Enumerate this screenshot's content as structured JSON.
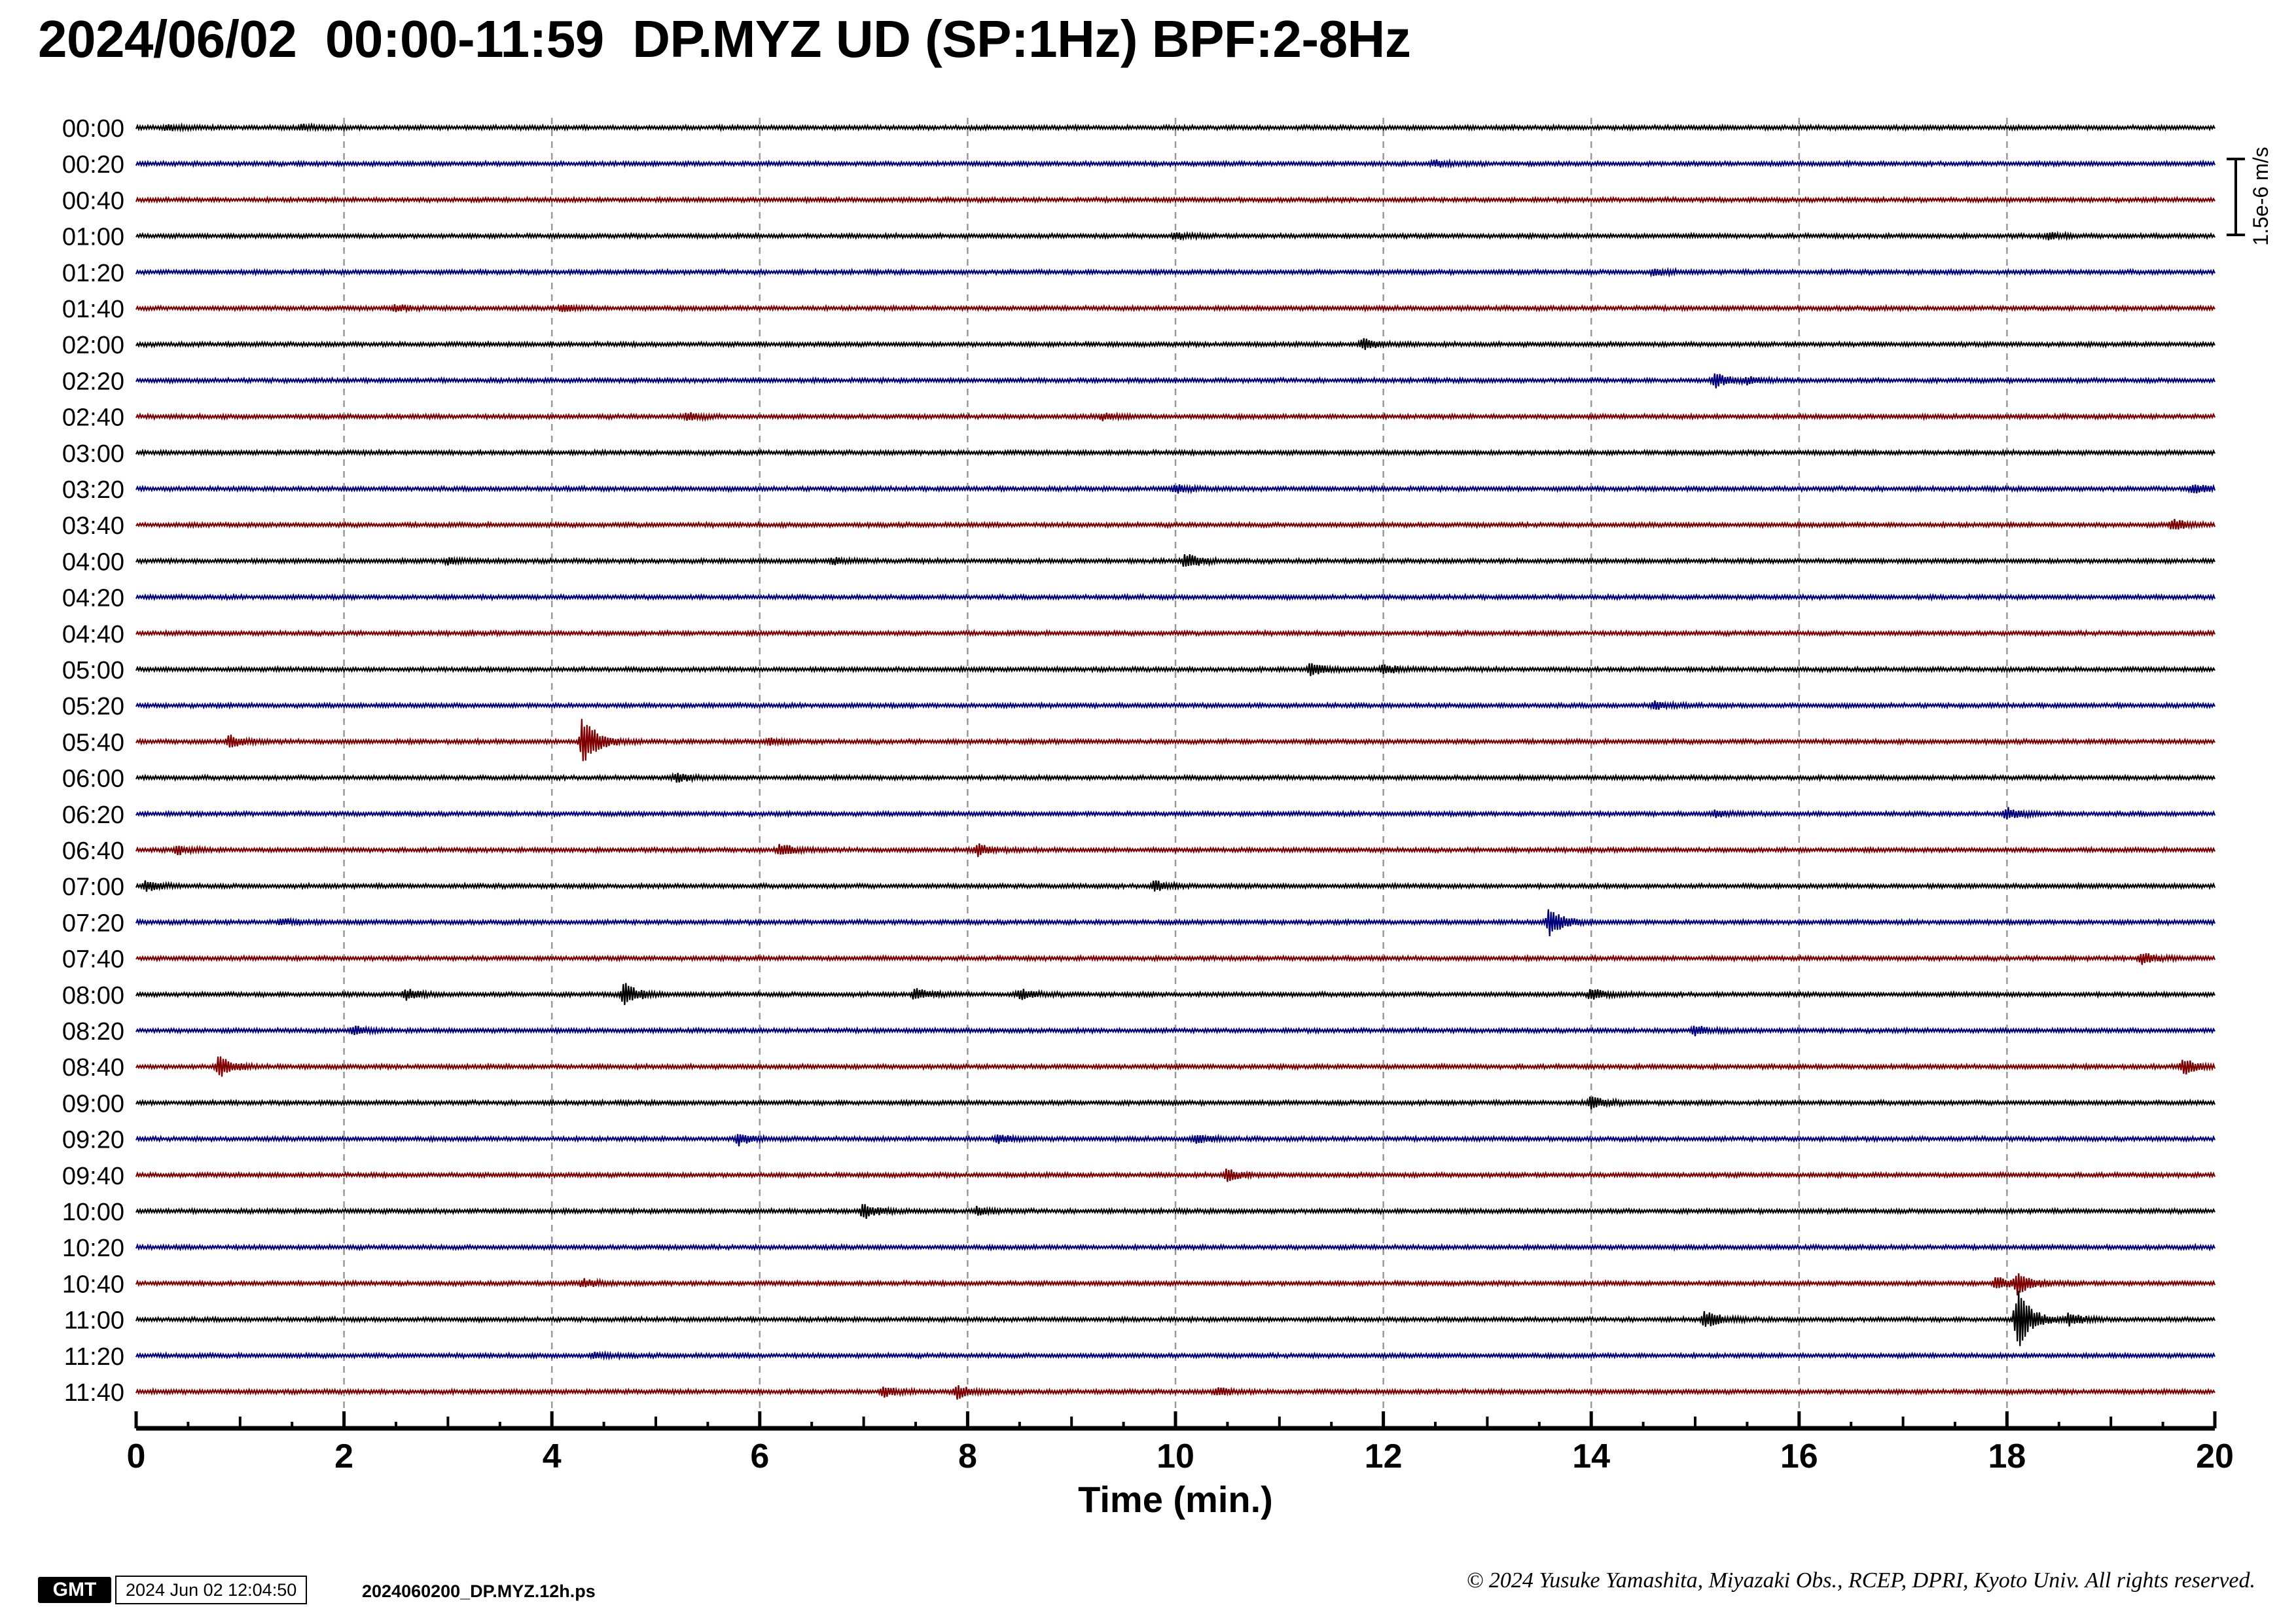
{
  "header": {
    "title": "2024/06/02  00:00-11:59  DP.MYZ UD (SP:1Hz) BPF:2-8Hz"
  },
  "chart_data": {
    "type": "line",
    "xlabel": "Time (min.)",
    "xlim": [
      0,
      20
    ],
    "x_ticks": [
      "0",
      "2",
      "4",
      "6",
      "8",
      "10",
      "12",
      "14",
      "16",
      "18",
      "20"
    ],
    "grid": "vertical dashed every 2 min",
    "scale_bar": {
      "label": "1.5e-6 m/s"
    },
    "trace_colors": [
      "#000000",
      "#00007f",
      "#7f0000"
    ],
    "traces": [
      {
        "label": "00:00",
        "events": [
          [
            0.3,
            0.3
          ],
          [
            1.6,
            0.25
          ]
        ]
      },
      {
        "label": "00:20",
        "events": [
          [
            12.5,
            0.3
          ]
        ]
      },
      {
        "label": "00:40",
        "events": []
      },
      {
        "label": "01:00",
        "events": [
          [
            10.0,
            0.3
          ],
          [
            18.4,
            0.3
          ]
        ]
      },
      {
        "label": "01:20",
        "events": [
          [
            14.6,
            0.3
          ]
        ]
      },
      {
        "label": "01:40",
        "events": [
          [
            2.5,
            0.3
          ],
          [
            4.1,
            0.3
          ]
        ]
      },
      {
        "label": "02:00",
        "events": [
          [
            11.8,
            0.6
          ]
        ]
      },
      {
        "label": "02:20",
        "events": [
          [
            15.2,
            0.7
          ],
          [
            15.5,
            0.3
          ]
        ]
      },
      {
        "label": "02:40",
        "events": [
          [
            5.3,
            0.4
          ],
          [
            9.3,
            0.3
          ]
        ]
      },
      {
        "label": "03:00",
        "events": []
      },
      {
        "label": "03:20",
        "events": [
          [
            10.0,
            0.4
          ],
          [
            19.8,
            0.5
          ]
        ]
      },
      {
        "label": "03:40",
        "events": [
          [
            19.6,
            0.6
          ]
        ]
      },
      {
        "label": "04:00",
        "events": [
          [
            3.0,
            0.3
          ],
          [
            6.7,
            0.3
          ],
          [
            10.1,
            0.8
          ]
        ]
      },
      {
        "label": "04:20",
        "events": []
      },
      {
        "label": "04:40",
        "events": []
      },
      {
        "label": "05:00",
        "events": [
          [
            11.3,
            0.6
          ],
          [
            12.0,
            0.5
          ]
        ]
      },
      {
        "label": "05:20",
        "events": [
          [
            14.6,
            0.4
          ]
        ]
      },
      {
        "label": "05:40",
        "events": [
          [
            0.9,
            0.6
          ],
          [
            4.3,
            2.8
          ],
          [
            6.1,
            0.3
          ]
        ]
      },
      {
        "label": "06:00",
        "events": [
          [
            5.2,
            0.4
          ]
        ]
      },
      {
        "label": "06:20",
        "events": [
          [
            15.2,
            0.3
          ],
          [
            18.0,
            0.6
          ]
        ]
      },
      {
        "label": "06:40",
        "events": [
          [
            0.4,
            0.4
          ],
          [
            6.2,
            0.6
          ],
          [
            8.1,
            0.6
          ]
        ]
      },
      {
        "label": "07:00",
        "events": [
          [
            0.1,
            0.5
          ],
          [
            9.8,
            0.5
          ]
        ]
      },
      {
        "label": "07:20",
        "events": [
          [
            1.4,
            0.3
          ],
          [
            13.6,
            1.5
          ]
        ]
      },
      {
        "label": "07:40",
        "events": [
          [
            19.3,
            0.5
          ]
        ]
      },
      {
        "label": "08:00",
        "events": [
          [
            2.6,
            0.5
          ],
          [
            4.7,
            1.2
          ],
          [
            7.5,
            0.6
          ],
          [
            8.5,
            0.5
          ],
          [
            14.0,
            0.6
          ]
        ]
      },
      {
        "label": "08:20",
        "events": [
          [
            2.1,
            0.5
          ],
          [
            15.0,
            0.5
          ]
        ]
      },
      {
        "label": "08:40",
        "events": [
          [
            0.8,
            1.1
          ],
          [
            19.7,
            0.9
          ]
        ]
      },
      {
        "label": "09:00",
        "events": [
          [
            14.0,
            0.6
          ]
        ]
      },
      {
        "label": "09:20",
        "events": [
          [
            5.8,
            0.6
          ],
          [
            8.3,
            0.4
          ],
          [
            10.2,
            0.4
          ]
        ]
      },
      {
        "label": "09:40",
        "events": [
          [
            10.5,
            0.6
          ]
        ]
      },
      {
        "label": "10:00",
        "events": [
          [
            7.0,
            0.8
          ],
          [
            8.1,
            0.4
          ]
        ]
      },
      {
        "label": "10:20",
        "events": []
      },
      {
        "label": "10:40",
        "events": [
          [
            4.3,
            0.4
          ],
          [
            17.9,
            0.6
          ],
          [
            18.1,
            1.2
          ]
        ]
      },
      {
        "label": "11:00",
        "events": [
          [
            15.1,
            0.9
          ],
          [
            18.1,
            3.4
          ],
          [
            18.6,
            0.6
          ]
        ]
      },
      {
        "label": "11:20",
        "events": [
          [
            4.4,
            0.3
          ]
        ]
      },
      {
        "label": "11:40",
        "events": [
          [
            7.2,
            0.5
          ],
          [
            7.9,
            0.7
          ],
          [
            10.4,
            0.4
          ]
        ]
      }
    ]
  },
  "footer": {
    "logo_text": "GMT",
    "timestamp": "2024 Jun 02 12:04:50",
    "filename": "2024060200_DP.MYZ.12h.ps",
    "copyright": "© 2024 Yusuke Yamashita, Miyazaki Obs., RCEP, DPRI, Kyoto Univ. All rights reserved."
  }
}
